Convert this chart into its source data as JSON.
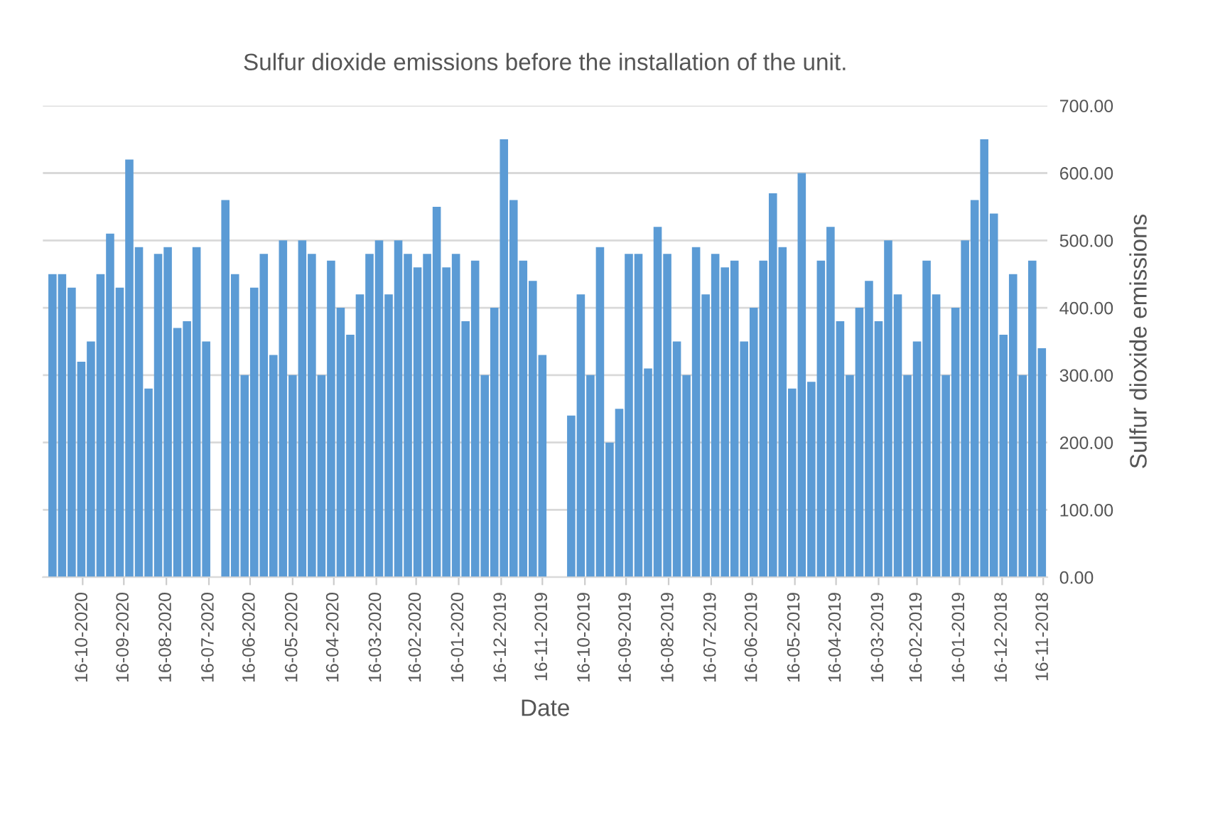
{
  "chart_data": {
    "type": "bar",
    "title": "Sulfur dioxide emissions before the installation of the unit.",
    "xlabel": "Date",
    "ylabel": "Sulfur dioxide emissions",
    "color": "#5b9bd5",
    "x": [
      "2018-11-17",
      "2018-11-24",
      "2018-12-01",
      "2018-12-08",
      "2018-12-15",
      "2018-12-22",
      "2018-12-29",
      "2019-01-05",
      "2019-01-12",
      "2019-01-19",
      "2019-01-26",
      "2019-02-02",
      "2019-02-09",
      "2019-02-16",
      "2019-02-23",
      "2019-03-02",
      "2019-03-09",
      "2019-03-16",
      "2019-03-23",
      "2019-03-30",
      "2019-04-06",
      "2019-04-13",
      "2019-04-20",
      "2019-04-27",
      "2019-05-04",
      "2019-05-11",
      "2019-05-18",
      "2019-05-25",
      "2019-06-01",
      "2019-06-08",
      "2019-06-15",
      "2019-06-22",
      "2019-06-29",
      "2019-07-06",
      "2019-07-13",
      "2019-07-20",
      "2019-07-27",
      "2019-08-03",
      "2019-08-10",
      "2019-08-17",
      "2019-08-24",
      "2019-08-31",
      "2019-09-07",
      "2019-09-14",
      "2019-09-21",
      "2019-09-28",
      "2019-10-05",
      "2019-10-12",
      "2019-10-19",
      "2019-10-26",
      "2019-11-02",
      "2019-11-09",
      "2019-11-16",
      "2019-11-23",
      "2019-11-30",
      "2019-12-07",
      "2019-12-14",
      "2019-12-21",
      "2019-12-28",
      "2020-01-04",
      "2020-01-11",
      "2020-01-18",
      "2020-01-25",
      "2020-02-01",
      "2020-02-08",
      "2020-02-15",
      "2020-02-22",
      "2020-02-29",
      "2020-03-07",
      "2020-03-14",
      "2020-03-21",
      "2020-03-28",
      "2020-04-04",
      "2020-04-11",
      "2020-04-18",
      "2020-04-25",
      "2020-05-02",
      "2020-05-09",
      "2020-05-16",
      "2020-05-23",
      "2020-05-30",
      "2020-06-06",
      "2020-06-13",
      "2020-06-20",
      "2020-06-27",
      "2020-07-04",
      "2020-07-11",
      "2020-07-18",
      "2020-07-25",
      "2020-08-01",
      "2020-08-08",
      "2020-08-15",
      "2020-08-22",
      "2020-08-29",
      "2020-09-05",
      "2020-09-12",
      "2020-09-19",
      "2020-09-26",
      "2020-10-03",
      "2020-10-10",
      "2020-10-17",
      "2020-10-24",
      "2020-10-31",
      "2020-11-07"
    ],
    "values": [
      340,
      470,
      300,
      450,
      360,
      540,
      650,
      560,
      500,
      400,
      300,
      420,
      470,
      350,
      300,
      420,
      500,
      380,
      440,
      400,
      300,
      380,
      520,
      470,
      290,
      600,
      280,
      490,
      570,
      470,
      400,
      350,
      470,
      460,
      480,
      420,
      490,
      300,
      350,
      480,
      520,
      310,
      480,
      480,
      250,
      200,
      490,
      300,
      420,
      240,
      null,
      null,
      330,
      440,
      470,
      560,
      650,
      400,
      300,
      470,
      380,
      480,
      460,
      550,
      480,
      460,
      480,
      500,
      420,
      500,
      480,
      420,
      360,
      400,
      470,
      300,
      480,
      500,
      300,
      500,
      330,
      480,
      430,
      300,
      450,
      560,
      null,
      350,
      490,
      380,
      370,
      490,
      480,
      280,
      490,
      620,
      430,
      510,
      450,
      350,
      320,
      430,
      450,
      450
    ],
    "xlim": [
      "2020-11-14",
      "2018-11-13"
    ],
    "xticks": [
      {
        "value": "2020-10-16",
        "label": "16-10-2020"
      },
      {
        "value": "2020-09-16",
        "label": "16-09-2020"
      },
      {
        "value": "2020-08-16",
        "label": "16-08-2020"
      },
      {
        "value": "2020-07-16",
        "label": "16-07-2020"
      },
      {
        "value": "2020-06-16",
        "label": "16-06-2020"
      },
      {
        "value": "2020-05-16",
        "label": "16-05-2020"
      },
      {
        "value": "2020-04-16",
        "label": "16-04-2020"
      },
      {
        "value": "2020-03-16",
        "label": "16-03-2020"
      },
      {
        "value": "2020-02-16",
        "label": "16-02-2020"
      },
      {
        "value": "2020-01-16",
        "label": "16-01-2020"
      },
      {
        "value": "2019-12-16",
        "label": "16-12-2019"
      },
      {
        "value": "2019-11-16",
        "label": "16-11-2019"
      },
      {
        "value": "2019-10-16",
        "label": "16-10-2019"
      },
      {
        "value": "2019-09-16",
        "label": "16-09-2019"
      },
      {
        "value": "2019-08-16",
        "label": "16-08-2019"
      },
      {
        "value": "2019-07-16",
        "label": "16-07-2019"
      },
      {
        "value": "2019-06-16",
        "label": "16-06-2019"
      },
      {
        "value": "2019-05-16",
        "label": "16-05-2019"
      },
      {
        "value": "2019-04-16",
        "label": "16-04-2019"
      },
      {
        "value": "2019-03-16",
        "label": "16-03-2019"
      },
      {
        "value": "2019-02-16",
        "label": "16-02-2019"
      },
      {
        "value": "2019-01-16",
        "label": "16-01-2019"
      },
      {
        "value": "2018-12-16",
        "label": "16-12-2018"
      },
      {
        "value": "2018-11-16",
        "label": "16-11-2018"
      }
    ],
    "ylim": [
      0,
      700
    ],
    "yticks": [
      {
        "value": 0,
        "label": "0.00"
      },
      {
        "value": 100,
        "label": "100.00"
      },
      {
        "value": 200,
        "label": "200.00"
      },
      {
        "value": 300,
        "label": "300.00"
      },
      {
        "value": 400,
        "label": "400.00"
      },
      {
        "value": 500,
        "label": "500.00"
      },
      {
        "value": 600,
        "label": "600.00"
      },
      {
        "value": 700,
        "label": "700.00"
      }
    ],
    "grid": "y"
  }
}
